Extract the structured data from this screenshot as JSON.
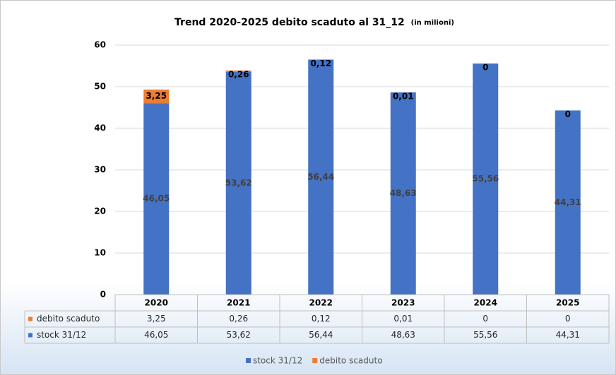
{
  "chart_data": {
    "type": "stacked_bar",
    "title": "Trend 2020-2025 debito scaduto al 31_12",
    "subtitle": "(in milioni)",
    "categories": [
      "2020",
      "2021",
      "2022",
      "2023",
      "2024",
      "2025"
    ],
    "series": [
      {
        "name": "stock 31/12",
        "color": "#4472c4",
        "values": [
          46.05,
          53.62,
          56.44,
          48.63,
          55.56,
          44.31
        ],
        "value_labels": [
          "46,05",
          "53,62",
          "56,44",
          "48,63",
          "55,56",
          "44,31"
        ]
      },
      {
        "name": "debito scaduto",
        "color": "#ed7d31",
        "values": [
          3.25,
          0.26,
          0.12,
          0.01,
          0,
          0
        ],
        "value_labels": [
          "3,25",
          "0,26",
          "0,12",
          "0,01",
          "0",
          "0"
        ]
      }
    ],
    "ylim": [
      0,
      60
    ],
    "yticks": [
      0,
      10,
      20,
      30,
      40,
      50,
      60
    ],
    "grid": true,
    "data_table": true,
    "legend": "bottom"
  }
}
